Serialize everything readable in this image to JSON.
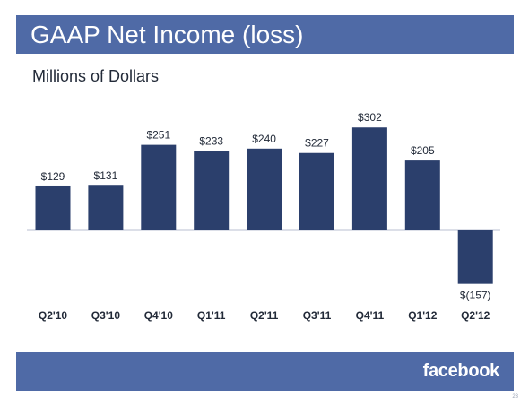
{
  "header": {
    "title": "GAAP Net Income (loss)"
  },
  "subtitle": "Millions of Dollars",
  "footer": {
    "logo_text": "facebook",
    "page_number": "23"
  },
  "colors": {
    "band": "#4f6aa6",
    "bar": "#2b3f6c",
    "text": "#222a38",
    "axis": "#b8bfd0"
  },
  "chart_data": {
    "type": "bar",
    "categories": [
      "Q2'10",
      "Q3'10",
      "Q4'10",
      "Q1'11",
      "Q2'11",
      "Q3'11",
      "Q4'11",
      "Q1'12",
      "Q2'12"
    ],
    "values": [
      129,
      131,
      251,
      233,
      240,
      227,
      302,
      205,
      -157
    ],
    "data_labels": [
      "$129",
      "$131",
      "$251",
      "$233",
      "$240",
      "$227",
      "$302",
      "$205",
      "$(157)"
    ],
    "ylabel": "Millions of Dollars",
    "ylim": [
      -157,
      302
    ],
    "grid": false,
    "legend": "none"
  }
}
